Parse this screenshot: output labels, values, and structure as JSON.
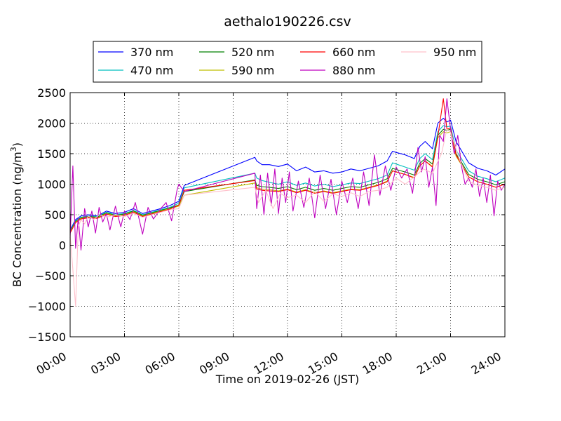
{
  "chart_data": {
    "type": "line",
    "title": "aethalo190226.csv",
    "xlabel": "Time on 2019-02-26 (JST)",
    "ylabel": "BC Concentration (ng/m³)",
    "ylabel_parts": {
      "text": "BC Concentration (ng/m",
      "sup": "3",
      "tail": ")"
    },
    "xlim": [
      0,
      24
    ],
    "ylim": [
      -1500,
      2500
    ],
    "x_ticks": [
      0,
      3,
      6,
      9,
      12,
      15,
      18,
      21,
      24
    ],
    "x_tick_labels": [
      "00:00",
      "03:00",
      "06:00",
      "09:00",
      "12:00",
      "15:00",
      "18:00",
      "21:00",
      "24:00"
    ],
    "y_ticks": [
      -1500,
      -1000,
      -500,
      0,
      500,
      1000,
      1500,
      2000,
      2500
    ],
    "y_tick_labels": [
      "−1500",
      "−1000",
      "−500",
      "0",
      "500",
      "1000",
      "1500",
      "2000",
      "2500"
    ],
    "x_unit": "hours",
    "grid": true,
    "legend_position": "top",
    "series": [
      {
        "name": "370 nm",
        "color": "#0000ff",
        "x": [
          0.0,
          0.3,
          0.6,
          1.0,
          1.5,
          2.0,
          2.5,
          3.0,
          3.5,
          4.0,
          4.5,
          5.0,
          5.5,
          6.0,
          6.3,
          10.2,
          10.3,
          10.6,
          11.0,
          11.5,
          12.0,
          12.5,
          13.0,
          13.5,
          14.0,
          14.5,
          15.0,
          15.5,
          16.0,
          16.5,
          17.0,
          17.5,
          17.8,
          18.0,
          18.5,
          19.0,
          19.3,
          19.6,
          20.0,
          20.3,
          20.6,
          20.8,
          21.0,
          21.3,
          21.6,
          22.0,
          22.5,
          23.0,
          23.5,
          24.0
        ],
        "y": [
          250,
          420,
          480,
          500,
          480,
          560,
          520,
          540,
          600,
          520,
          560,
          600,
          650,
          720,
          980,
          1440,
          1380,
          1320,
          1320,
          1290,
          1330,
          1220,
          1280,
          1200,
          1220,
          1180,
          1200,
          1250,
          1220,
          1260,
          1300,
          1380,
          1540,
          1520,
          1480,
          1420,
          1620,
          1700,
          1580,
          2000,
          2080,
          2020,
          2050,
          1700,
          1550,
          1350,
          1260,
          1220,
          1150,
          1250
        ]
      },
      {
        "name": "470 nm",
        "color": "#00bfbf",
        "x": [
          0.0,
          0.3,
          0.6,
          1.0,
          1.5,
          2.0,
          2.5,
          3.0,
          3.5,
          4.0,
          4.5,
          5.0,
          5.5,
          6.0,
          6.3,
          10.2,
          10.3,
          10.6,
          11.0,
          11.5,
          12.0,
          12.5,
          13.0,
          13.5,
          14.0,
          14.5,
          15.0,
          15.5,
          16.0,
          16.5,
          17.0,
          17.5,
          17.8,
          18.0,
          18.5,
          19.0,
          19.3,
          19.6,
          20.0,
          20.3,
          20.6,
          20.8,
          21.0,
          21.3,
          21.6,
          22.0,
          22.5,
          23.0,
          23.5,
          24.0
        ],
        "y": [
          230,
          400,
          460,
          480,
          470,
          540,
          500,
          520,
          570,
          500,
          540,
          580,
          620,
          690,
          940,
          1180,
          1100,
          1060,
          1030,
          1000,
          1040,
          980,
          1020,
          970,
          1000,
          960,
          990,
          1020,
          1010,
          1050,
          1090,
          1150,
          1350,
          1330,
          1280,
          1230,
          1420,
          1500,
          1400,
          1860,
          1960,
          1940,
          1950,
          1560,
          1420,
          1220,
          1130,
          1090,
          1040,
          1100
        ]
      },
      {
        "name": "520 nm",
        "color": "#008000",
        "x": [
          0.0,
          0.3,
          0.6,
          1.0,
          1.5,
          2.0,
          2.5,
          3.0,
          3.5,
          4.0,
          4.5,
          5.0,
          5.5,
          6.0,
          6.3,
          10.2,
          10.3,
          10.6,
          11.0,
          11.5,
          12.0,
          12.5,
          13.0,
          13.5,
          14.0,
          14.5,
          15.0,
          15.5,
          16.0,
          16.5,
          17.0,
          17.5,
          17.8,
          18.0,
          18.5,
          19.0,
          19.3,
          19.6,
          20.0,
          20.3,
          20.6,
          20.8,
          21.0,
          21.3,
          21.6,
          22.0,
          22.5,
          23.0,
          23.5,
          24.0
        ],
        "y": [
          220,
          390,
          450,
          470,
          460,
          530,
          490,
          510,
          560,
          490,
          530,
          570,
          610,
          660,
          880,
          1070,
          980,
          960,
          950,
          930,
          960,
          910,
          950,
          900,
          930,
          900,
          930,
          960,
          950,
          990,
          1030,
          1090,
          1260,
          1240,
          1200,
          1150,
          1340,
          1420,
          1330,
          1800,
          1900,
          1880,
          1900,
          1500,
          1360,
          1160,
          1080,
          1040,
          990,
          1040
        ]
      },
      {
        "name": "590 nm",
        "color": "#bfbf00",
        "x": [
          0.0,
          0.3,
          0.6,
          1.0,
          1.5,
          2.0,
          2.5,
          3.0,
          3.5,
          4.0,
          4.5,
          5.0,
          5.5,
          6.0,
          6.3,
          10.2,
          10.3,
          10.6,
          11.0,
          11.5,
          12.0,
          12.5,
          13.0,
          13.5,
          14.0,
          14.5,
          15.0,
          15.5,
          16.0,
          16.5,
          17.0,
          17.5,
          17.8,
          18.0,
          18.5,
          19.0,
          19.3,
          19.6,
          20.0,
          20.3,
          20.6,
          20.8,
          21.0,
          21.3,
          21.6,
          22.0,
          22.5,
          23.0,
          23.5,
          24.0
        ],
        "y": [
          210,
          380,
          440,
          460,
          450,
          520,
          480,
          500,
          550,
          480,
          520,
          560,
          600,
          640,
          820,
          1020,
          940,
          920,
          910,
          890,
          920,
          870,
          910,
          860,
          890,
          860,
          890,
          920,
          910,
          950,
          990,
          1050,
          1220,
          1200,
          1160,
          1110,
          1300,
          1380,
          1290,
          1760,
          1860,
          1840,
          1860,
          1460,
          1320,
          1120,
          1040,
          1000,
          950,
          1000
        ]
      },
      {
        "name": "660 nm",
        "color": "#ff0000",
        "x": [
          0.0,
          0.3,
          0.6,
          1.0,
          1.5,
          2.0,
          2.5,
          3.0,
          3.5,
          4.0,
          4.5,
          5.0,
          5.5,
          6.0,
          6.3,
          10.2,
          10.3,
          10.6,
          11.0,
          11.5,
          12.0,
          12.5,
          13.0,
          13.5,
          14.0,
          14.5,
          15.0,
          15.5,
          16.0,
          16.5,
          17.0,
          17.5,
          17.8,
          18.0,
          18.5,
          19.0,
          19.3,
          19.6,
          20.0,
          20.3,
          20.6,
          20.8,
          21.0,
          21.3,
          21.6,
          22.0,
          22.5,
          23.0,
          23.5,
          24.0
        ],
        "y": [
          200,
          370,
          430,
          450,
          440,
          510,
          470,
          490,
          540,
          470,
          510,
          550,
          590,
          660,
          900,
          1060,
          920,
          900,
          890,
          880,
          910,
          860,
          900,
          850,
          880,
          850,
          880,
          910,
          900,
          940,
          980,
          1040,
          1220,
          1200,
          1160,
          1100,
          1300,
          1380,
          1280,
          1780,
          2400,
          1900,
          1920,
          1480,
          1330,
          1120,
          1040,
          1000,
          950,
          1000
        ]
      },
      {
        "name": "880 nm",
        "color": "#bf00bf",
        "x": [
          0.0,
          0.15,
          0.3,
          0.45,
          0.6,
          0.8,
          1.0,
          1.2,
          1.4,
          1.6,
          1.8,
          2.0,
          2.2,
          2.5,
          2.8,
          3.0,
          3.3,
          3.6,
          4.0,
          4.3,
          4.6,
          5.0,
          5.3,
          5.6,
          5.9,
          6.0,
          6.3,
          10.2,
          10.3,
          10.5,
          10.7,
          10.9,
          11.1,
          11.3,
          11.5,
          11.7,
          11.9,
          12.1,
          12.3,
          12.6,
          12.9,
          13.2,
          13.5,
          13.8,
          14.1,
          14.4,
          14.7,
          15.0,
          15.3,
          15.6,
          15.9,
          16.2,
          16.5,
          16.8,
          17.1,
          17.4,
          17.7,
          18.0,
          18.3,
          18.6,
          18.9,
          19.2,
          19.4,
          19.6,
          19.8,
          20.0,
          20.2,
          20.4,
          20.6,
          20.8,
          21.0,
          21.2,
          21.4,
          21.6,
          21.8,
          22.0,
          22.2,
          22.4,
          22.6,
          22.8,
          23.0,
          23.2,
          23.4,
          23.6,
          23.8,
          24.0
        ],
        "y": [
          120,
          1300,
          -50,
          450,
          -80,
          600,
          300,
          560,
          200,
          620,
          380,
          520,
          250,
          640,
          300,
          560,
          420,
          700,
          180,
          620,
          430,
          600,
          700,
          400,
          900,
          1000,
          880,
          1180,
          600,
          1150,
          500,
          1180,
          650,
          1250,
          520,
          1100,
          700,
          1200,
          560,
          1050,
          620,
          1100,
          450,
          1150,
          600,
          1080,
          500,
          1050,
          700,
          1100,
          600,
          1200,
          650,
          1480,
          820,
          1300,
          900,
          1280,
          1100,
          1250,
          850,
          1600,
          1200,
          1450,
          950,
          1280,
          650,
          1800,
          1700,
          2400,
          1900,
          1500,
          1800,
          1300,
          1000,
          1100,
          950,
          1250,
          800,
          1100,
          700,
          1150,
          480,
          1050,
          900,
          1000
        ]
      },
      {
        "name": "950 nm",
        "color": "#ffc0cb",
        "x": [
          0.0,
          0.15,
          0.3,
          0.45,
          0.6,
          0.8,
          1.0,
          1.3,
          1.6,
          2.0,
          2.5,
          3.0,
          3.5,
          4.0,
          4.5,
          5.0,
          5.5,
          6.0,
          6.3,
          10.2,
          10.4,
          10.8,
          11.2,
          11.6,
          12.0,
          12.5,
          13.0,
          13.5,
          14.0,
          14.5,
          15.0,
          15.5,
          16.0,
          16.5,
          17.0,
          17.5,
          18.0,
          18.5,
          19.0,
          19.5,
          20.0,
          20.5,
          20.8,
          21.0,
          21.5,
          22.0,
          22.5,
          23.0,
          23.5,
          24.0
        ],
        "y": [
          180,
          -400,
          -1000,
          300,
          420,
          350,
          480,
          420,
          500,
          460,
          500,
          470,
          520,
          460,
          500,
          540,
          580,
          600,
          820,
          950,
          700,
          900,
          600,
          850,
          780,
          820,
          700,
          880,
          720,
          840,
          800,
          860,
          800,
          880,
          900,
          950,
          1100,
          1000,
          1120,
          1250,
          1180,
          1500,
          1900,
          1850,
          1400,
          1050,
          980,
          950,
          900,
          950
        ]
      }
    ]
  }
}
